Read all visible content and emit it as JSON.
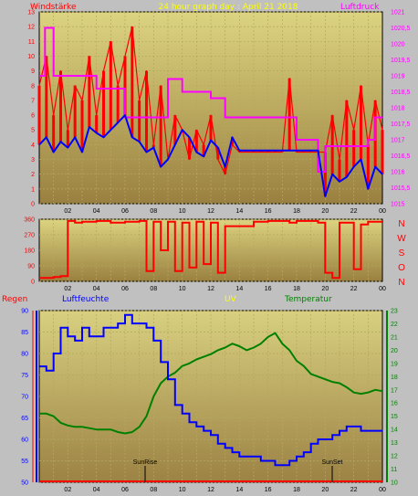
{
  "header": {
    "left_label": "Windstärke",
    "center_title": "24 hour graph day : April 21 2018",
    "right_label": "Luftdruck"
  },
  "colors": {
    "background": "#c0c0c0",
    "plot_top": "#dcd480",
    "plot_bottom": "#9a8040",
    "wind": "#ff0000",
    "windavg": "#0000ff",
    "pressure": "#ff00ff",
    "direction": "#ff0000",
    "humidity": "#0000ff",
    "temperature": "#008000",
    "uv": "#ffff00",
    "rain": "#ff0000"
  },
  "bottom_header": {
    "regen": "Regen",
    "luftfeuchte": "Luftfeuchte",
    "uv": "UV",
    "temperatur": "Temperatur"
  },
  "direction_letters": [
    "N",
    "W",
    "S",
    "O",
    "N"
  ],
  "markers": {
    "sunrise": "SunRise",
    "sunset": "SunSet"
  },
  "chart_data": [
    {
      "type": "line",
      "name": "wind-pressure",
      "x_ticks": [
        "02",
        "04",
        "06",
        "08",
        "10",
        "12",
        "14",
        "16",
        "18",
        "20",
        "22",
        "00"
      ],
      "y_left_ticks": [
        "0",
        "1",
        "2",
        "3",
        "4",
        "5",
        "6",
        "7",
        "8",
        "9",
        "10",
        "11",
        "12",
        "13"
      ],
      "y_left_range": [
        0,
        13
      ],
      "y_right_ticks": [
        "1015",
        "1015,5",
        "1016",
        "1016,5",
        "1017",
        "1017,5",
        "1018",
        "1018,5",
        "1019",
        "1019,5",
        "1020",
        "1020,5",
        "1021"
      ],
      "y_right_range": [
        1015,
        1021
      ],
      "series": [
        {
          "id": "wind_gust",
          "x": [
            0,
            0.5,
            1,
            1.5,
            2,
            2.5,
            3,
            3.5,
            4,
            4.5,
            5,
            5.5,
            6,
            6.5,
            7,
            7.5,
            8,
            8.5,
            9,
            9.5,
            10,
            10.5,
            11,
            11.5,
            12,
            12.5,
            13,
            13.5,
            14,
            14.5,
            15,
            15.5,
            16,
            16.5,
            17,
            17.5,
            18,
            18.5,
            19,
            19.5,
            20,
            20.5,
            21,
            21.5,
            22,
            22.5,
            23,
            23.5,
            24
          ],
          "values": [
            8,
            10,
            6,
            9,
            5,
            8,
            7,
            10,
            6,
            9,
            11,
            8,
            10,
            12,
            7,
            9,
            4,
            8,
            3,
            6,
            5,
            3,
            5,
            4,
            6,
            3,
            2,
            4,
            3.5,
            3.5,
            3.5,
            3.5,
            3.5,
            3.5,
            3.5,
            8.5,
            3.5,
            3.5,
            3.5,
            3.5,
            3.5,
            6,
            3,
            7,
            5,
            8,
            4,
            7,
            5
          ]
        },
        {
          "id": "wind_avg",
          "x": [
            0,
            0.5,
            1,
            1.5,
            2,
            2.5,
            3,
            3.5,
            4,
            4.5,
            5,
            5.5,
            6,
            6.5,
            7,
            7.5,
            8,
            8.5,
            9,
            9.5,
            10,
            10.5,
            11,
            11.5,
            12,
            12.5,
            13,
            13.5,
            14,
            14.5,
            15,
            15.5,
            16,
            16.5,
            17,
            17.5,
            18,
            18.5,
            19,
            19.5,
            20,
            20.5,
            21,
            21.5,
            22,
            22.5,
            23,
            23.5,
            24
          ],
          "values": [
            4,
            4.5,
            3.5,
            4.2,
            3.8,
            4.5,
            3.5,
            5.2,
            4.8,
            4.5,
            5,
            5.5,
            6,
            4.5,
            4.2,
            3.5,
            3.8,
            2.5,
            3,
            4,
            5,
            4.5,
            3.5,
            3.2,
            4.3,
            3.8,
            2.5,
            4.5,
            3.6,
            3.6,
            3.6,
            3.6,
            3.6,
            3.6,
            3.6,
            3.6,
            3.6,
            3.6,
            3.6,
            3.6,
            0.5,
            2,
            1.5,
            1.8,
            2.5,
            3,
            1,
            2.5,
            2
          ]
        },
        {
          "id": "pressure",
          "x": [
            0,
            0.4,
            1,
            2,
            3,
            4,
            5,
            6,
            7,
            8,
            9,
            10,
            11,
            12,
            13,
            14,
            15,
            16,
            17,
            18,
            19,
            19.5,
            20,
            21,
            22,
            23,
            23.5,
            24
          ],
          "values": [
            1019,
            1020.5,
            1019,
            1019,
            1019,
            1018.6,
            1018.6,
            1017.7,
            1017.7,
            1017.7,
            1018.9,
            1018.5,
            1018.5,
            1018.3,
            1017.7,
            1017.7,
            1017.7,
            1017.7,
            1017.7,
            1017,
            1017,
            1016,
            1016.8,
            1016.8,
            1016.8,
            1017,
            1017.7,
            1017.7
          ]
        }
      ]
    },
    {
      "type": "line",
      "name": "wind-direction",
      "x_ticks": [
        "02",
        "04",
        "06",
        "08",
        "10",
        "12",
        "14",
        "16",
        "18",
        "20",
        "22",
        "00"
      ],
      "y_ticks": [
        "0",
        "90",
        "180",
        "270",
        "360"
      ],
      "y_range": [
        0,
        360
      ],
      "series": [
        {
          "id": "direction",
          "x": [
            0,
            1,
            1.5,
            2,
            2.5,
            3,
            4,
            5,
            6,
            7,
            7.5,
            8,
            8.5,
            9,
            9.5,
            10,
            10.5,
            11,
            11.5,
            12,
            12.5,
            13,
            14,
            15,
            16,
            17,
            17.5,
            18,
            19,
            19.5,
            20,
            20.5,
            21,
            22,
            22.5,
            23,
            24
          ],
          "values": [
            20,
            25,
            30,
            350,
            340,
            345,
            350,
            340,
            345,
            350,
            60,
            345,
            180,
            345,
            60,
            340,
            80,
            345,
            100,
            340,
            50,
            320,
            320,
            345,
            350,
            350,
            340,
            350,
            350,
            340,
            50,
            20,
            340,
            70,
            330,
            345,
            340
          ]
        }
      ]
    },
    {
      "type": "line",
      "name": "humidity-temperature",
      "x_ticks": [
        "02",
        "04",
        "06",
        "08",
        "10",
        "12",
        "14",
        "16",
        "18",
        "20",
        "22",
        "00"
      ],
      "y_left_ticks": [
        "50",
        "55",
        "60",
        "65",
        "70",
        "75",
        "80",
        "85",
        "90"
      ],
      "y_left_range": [
        50,
        90
      ],
      "y_right_ticks": [
        "10",
        "11",
        "12",
        "13",
        "14",
        "15",
        "16",
        "17",
        "18",
        "19",
        "20",
        "21",
        "22",
        "23"
      ],
      "y_right_range": [
        10,
        23
      ],
      "series": [
        {
          "id": "humidity",
          "x": [
            0,
            0.5,
            1,
            1.5,
            2,
            2.5,
            3,
            3.5,
            4,
            4.5,
            5,
            5.5,
            6,
            6.5,
            7,
            7.5,
            8,
            8.5,
            9,
            9.5,
            10,
            10.5,
            11,
            11.5,
            12,
            12.5,
            13,
            13.5,
            14,
            14.5,
            15,
            15.5,
            16,
            16.5,
            17,
            17.5,
            18,
            18.5,
            19,
            19.5,
            20,
            20.5,
            21,
            21.5,
            22,
            22.5,
            23,
            23.5,
            24
          ],
          "values": [
            77,
            76,
            80,
            86,
            84,
            83,
            86,
            84,
            84,
            86,
            86,
            87,
            89,
            87,
            87,
            86,
            83,
            78,
            74,
            68,
            66,
            64,
            63,
            62,
            61,
            59,
            58,
            57,
            56,
            56,
            56,
            55,
            55,
            54,
            54,
            55,
            56,
            57,
            59,
            60,
            60,
            61,
            62,
            63,
            63,
            62,
            62,
            62,
            62
          ]
        },
        {
          "id": "temperature",
          "x": [
            0,
            0.5,
            1,
            1.5,
            2,
            2.5,
            3,
            3.5,
            4,
            4.5,
            5,
            5.5,
            6,
            6.5,
            7,
            7.5,
            8,
            8.5,
            9,
            9.5,
            10,
            10.5,
            11,
            11.5,
            12,
            12.5,
            13,
            13.5,
            14,
            14.5,
            15,
            15.5,
            16,
            16.5,
            17,
            17.5,
            18,
            18.5,
            19,
            19.5,
            20,
            20.5,
            21,
            21.5,
            22,
            22.5,
            23,
            23.5,
            24
          ],
          "values": [
            15.2,
            15.2,
            15.0,
            14.5,
            14.3,
            14.2,
            14.2,
            14.1,
            14.0,
            14.0,
            14.0,
            13.8,
            13.7,
            13.8,
            14.2,
            15.0,
            16.5,
            17.5,
            18.0,
            18.3,
            18.8,
            19.0,
            19.3,
            19.5,
            19.7,
            20.0,
            20.2,
            20.5,
            20.3,
            20.0,
            20.2,
            20.5,
            21.0,
            21.3,
            20.5,
            20.0,
            19.2,
            18.8,
            18.2,
            18.0,
            17.8,
            17.6,
            17.5,
            17.2,
            16.8,
            16.7,
            16.8,
            17.0,
            16.9
          ]
        }
      ]
    }
  ]
}
